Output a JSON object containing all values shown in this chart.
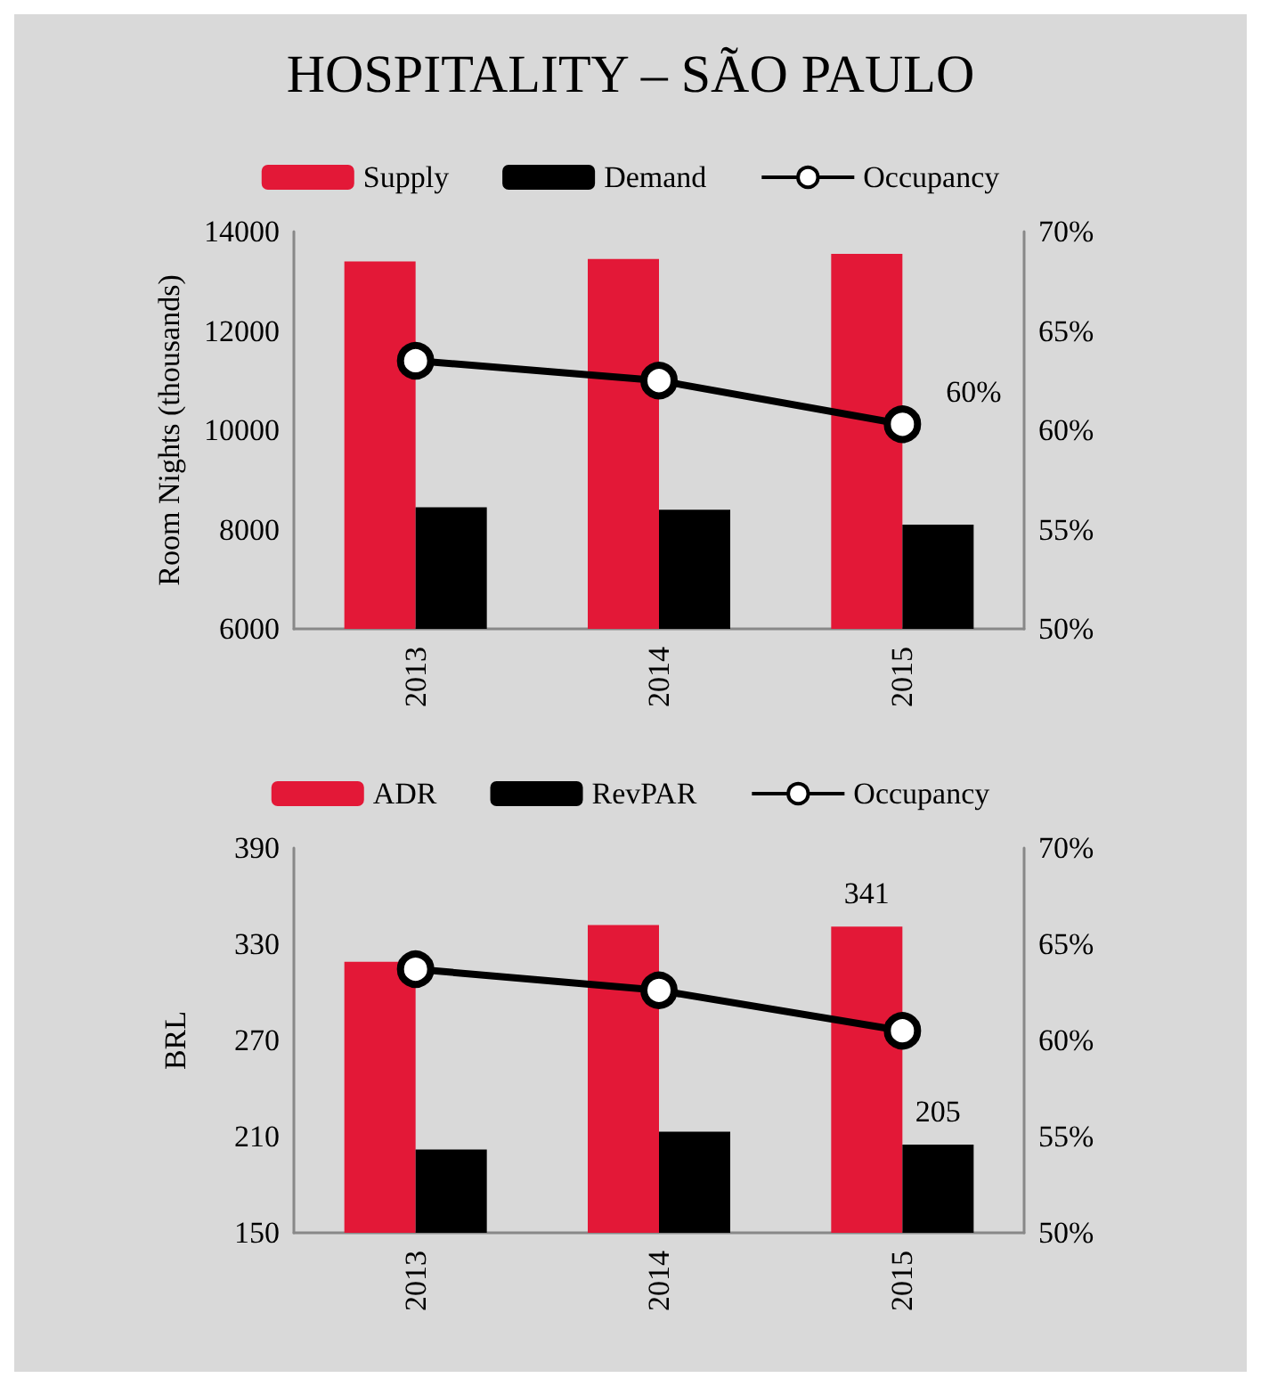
{
  "chart_data": [
    {
      "type": "bar",
      "title": "HOSPITALITY – SÃO PAULO",
      "ylabel": "Room Nights (thousands)",
      "categories": [
        "2013",
        "2014",
        "2015"
      ],
      "series": [
        {
          "name": "Supply",
          "color": "#e31837",
          "values": [
            13400,
            13450,
            13550
          ]
        },
        {
          "name": "Demand",
          "color": "#000000",
          "values": [
            8450,
            8400,
            8100
          ]
        },
        {
          "name": "Occupancy",
          "type": "line",
          "axis": "y2",
          "color": "#000000",
          "values": [
            63.5,
            62.5,
            60.3
          ],
          "value_labels": [
            null,
            null,
            "60%"
          ]
        }
      ],
      "ylim": [
        6000,
        14000
      ],
      "yticks": [
        6000,
        8000,
        10000,
        12000,
        14000
      ],
      "y2lim": [
        50,
        70
      ],
      "y2ticks": [
        {
          "value": 50,
          "label": "50%"
        },
        {
          "value": 55,
          "label": "55%"
        },
        {
          "value": 60,
          "label": "60%"
        },
        {
          "value": 65,
          "label": "65%"
        },
        {
          "value": 70,
          "label": "70%"
        }
      ],
      "grid": false,
      "legend": "top",
      "marker": "circle"
    },
    {
      "type": "bar",
      "ylabel": "BRL",
      "categories": [
        "2013",
        "2014",
        "2015"
      ],
      "series": [
        {
          "name": "ADR",
          "color": "#e31837",
          "values": [
            319,
            342,
            341
          ],
          "value_labels": [
            null,
            null,
            "341"
          ]
        },
        {
          "name": "RevPAR",
          "color": "#000000",
          "values": [
            202,
            213,
            205
          ],
          "value_labels": [
            null,
            null,
            "205"
          ]
        },
        {
          "name": "Occupancy",
          "type": "line",
          "axis": "y2",
          "color": "#000000",
          "values": [
            63.7,
            62.6,
            60.5
          ]
        }
      ],
      "ylim": [
        150,
        390
      ],
      "yticks": [
        150,
        210,
        270,
        330,
        390
      ],
      "y2lim": [
        50,
        70
      ],
      "y2ticks": [
        {
          "value": 50,
          "label": "50%"
        },
        {
          "value": 55,
          "label": "55%"
        },
        {
          "value": 60,
          "label": "60%"
        },
        {
          "value": 65,
          "label": "65%"
        },
        {
          "value": 70,
          "label": "70%"
        }
      ],
      "grid": false,
      "legend": "top",
      "marker": "circle"
    }
  ]
}
